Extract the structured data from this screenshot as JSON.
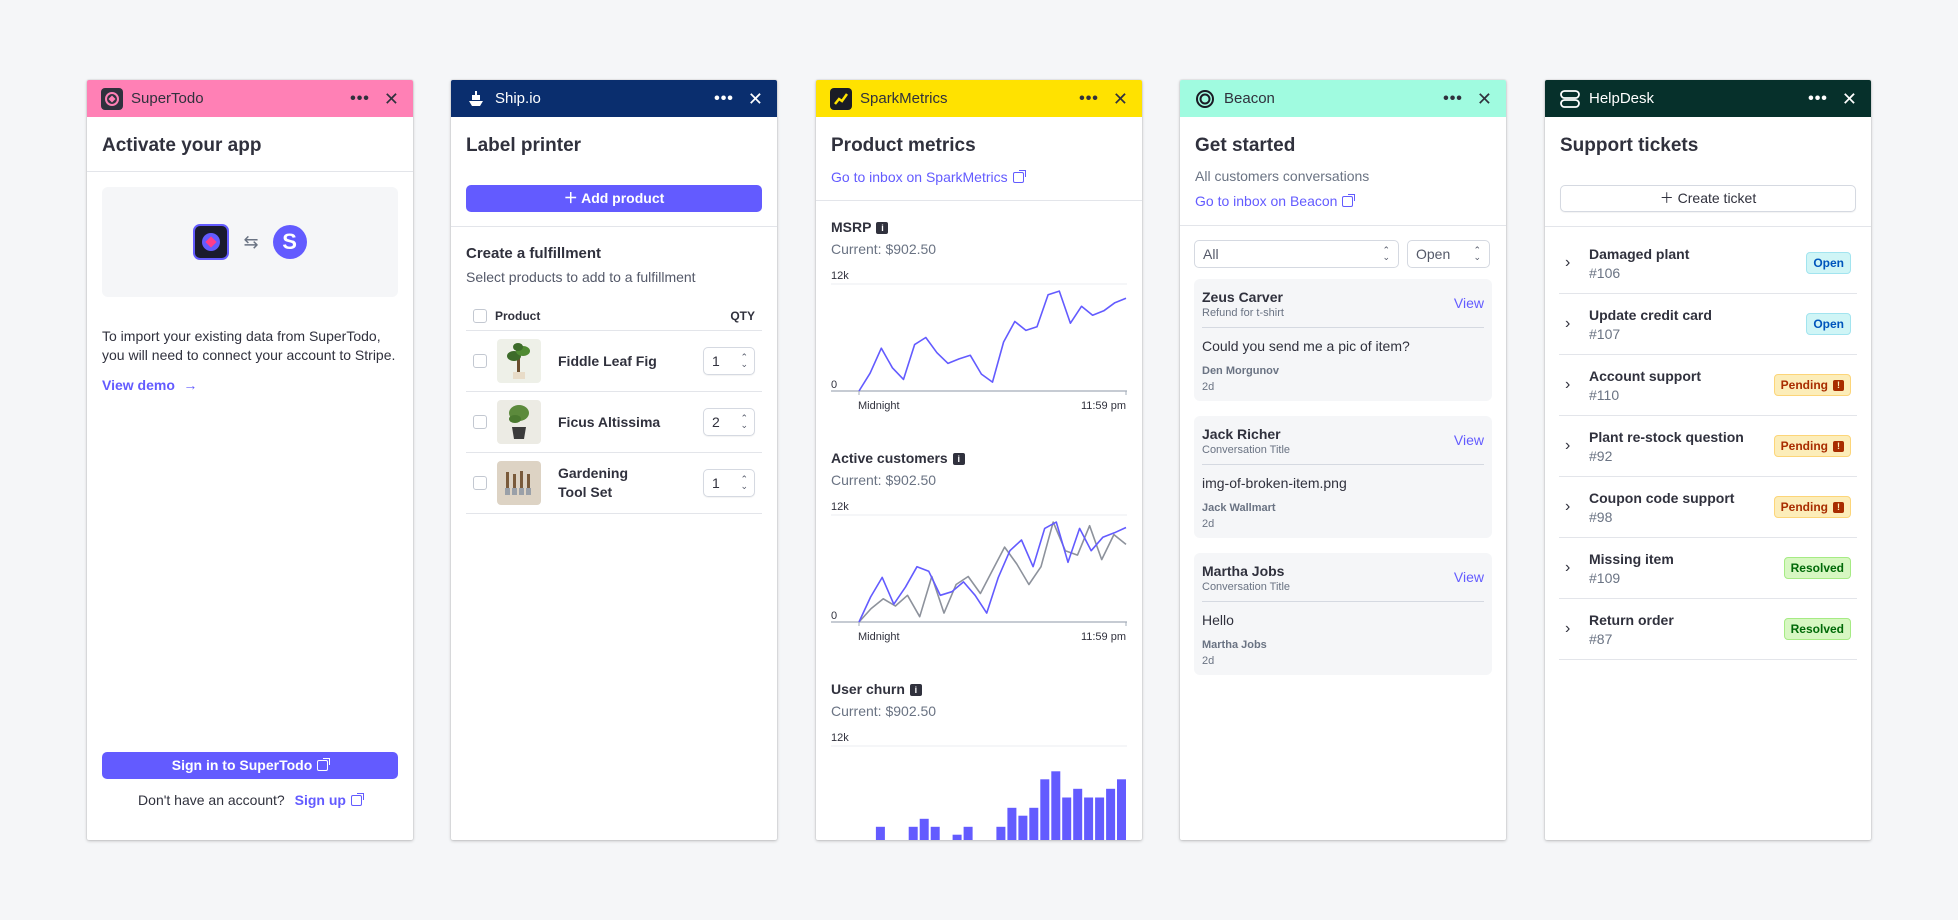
{
  "supertodo": {
    "app_name": "SuperTodo",
    "header_color": "#ff80b5",
    "title": "Activate your app",
    "description": "To import your existing data from SuperTodo, you will need to connect your account to Stripe.",
    "view_demo": "View demo",
    "sign_in": "Sign in to SuperTodo",
    "no_account": "Don't have an account?",
    "sign_up": "Sign up"
  },
  "shipio": {
    "app_name": "Ship.io",
    "header_color": "#0a2e6e",
    "title": "Label printer",
    "add_product": "Add product",
    "fulfillment_title": "Create a fulfillment",
    "fulfillment_sub": "Select products to add to a fulfillment",
    "col_product": "Product",
    "col_qty": "QTY",
    "products": [
      {
        "name": "Fiddle Leaf Fig",
        "qty": "1"
      },
      {
        "name": "Ficus Altissima",
        "qty": "2"
      },
      {
        "name": "Gardening Tool Set",
        "qty": "1"
      }
    ]
  },
  "sparkmetrics": {
    "app_name": "SparkMetrics",
    "header_color": "#ffe200",
    "title": "Product metrics",
    "inbox_link": "Go to inbox on SparkMetrics",
    "metrics": [
      {
        "name": "MSRP",
        "current": "Current: $902.50",
        "y_max": "12k",
        "y_min": "0",
        "x_start": "Midnight",
        "x_end": "11:59 pm"
      },
      {
        "name": "Active customers",
        "current": "Current: $902.50",
        "y_max": "12k",
        "y_min": "0",
        "x_start": "Midnight",
        "x_end": "11:59 pm"
      },
      {
        "name": "User churn",
        "current": "Current: $902.50",
        "y_max": "12k"
      }
    ]
  },
  "chart_data": [
    {
      "type": "line",
      "title": "MSRP",
      "ylim": [
        0,
        12000
      ],
      "x_range": [
        "Midnight",
        "11:59 pm"
      ],
      "series": [
        {
          "color": "#635bff",
          "values": [
            0,
            2000,
            4800,
            2600,
            1300,
            5200,
            6000,
            4300,
            3100,
            3600,
            4000,
            1900,
            1000,
            5500,
            7800,
            6800,
            7200,
            10800,
            11200,
            7600,
            9500,
            8500,
            9000,
            9900,
            10400
          ]
        }
      ]
    },
    {
      "type": "line",
      "title": "Active customers",
      "ylim": [
        0,
        12000
      ],
      "x_range": [
        "Midnight",
        "11:59 pm"
      ],
      "series": [
        {
          "color": "#635bff",
          "values": [
            0,
            2800,
            5000,
            2000,
            3900,
            6200,
            5700,
            3000,
            3400,
            4500,
            3000,
            1000,
            5000,
            8000,
            9200,
            6200,
            10500,
            11200,
            6700,
            10500,
            8000,
            9500,
            10000,
            10600
          ]
        },
        {
          "color": "#8d929c",
          "values": [
            0,
            1500,
            2600,
            1800,
            3000,
            600,
            5100,
            1000,
            4200,
            5100,
            3200,
            5800,
            8400,
            6500,
            4200,
            6200,
            11200,
            8000,
            7500,
            10800,
            7000,
            9800,
            8700
          ]
        }
      ]
    },
    {
      "type": "bar",
      "title": "User churn",
      "ylim": [
        0,
        12000
      ],
      "values": [
        0,
        0,
        0,
        0,
        1800,
        0,
        0,
        1800,
        2800,
        1800,
        0,
        800,
        1800,
        0,
        0,
        1800,
        4200,
        3200,
        4200,
        7800,
        8800,
        5500,
        6600,
        5500,
        5500,
        6600,
        7800
      ]
    }
  ],
  "beacon": {
    "app_name": "Beacon",
    "header_color": "#a0fbe0",
    "title": "Get started",
    "subtitle": "All customers conversations",
    "inbox_link": "Go to inbox on Beacon",
    "filter_all": "All",
    "filter_open": "Open",
    "view_label": "View",
    "conversations": [
      {
        "name": "Zeus Carver",
        "subject": "Refund for t-shirt",
        "message": "Could you send me a pic of item?",
        "author": "Den Morgunov",
        "time": "2d"
      },
      {
        "name": "Jack Richer",
        "subject": "Conversation Title",
        "message": "img-of-broken-item.png",
        "author": "Jack Wallmart",
        "time": "2d"
      },
      {
        "name": "Martha Jobs",
        "subject": "Conversation Title",
        "message": "Hello",
        "author": "Martha Jobs",
        "time": "2d"
      }
    ]
  },
  "helpdesk": {
    "app_name": "HelpDesk",
    "header_color": "#06302b",
    "title": "Support tickets",
    "create_ticket": "Create ticket",
    "tickets": [
      {
        "title": "Damaged plant",
        "number": "#106",
        "status": "Open",
        "kind": "open"
      },
      {
        "title": "Update credit card",
        "number": "#107",
        "status": "Open",
        "kind": "open"
      },
      {
        "title": "Account support",
        "number": "#110",
        "status": "Pending",
        "kind": "pending"
      },
      {
        "title": "Plant re-stock question",
        "number": "#92",
        "status": "Pending",
        "kind": "pending"
      },
      {
        "title": "Coupon code support",
        "number": "#98",
        "status": "Pending",
        "kind": "pending"
      },
      {
        "title": "Missing item",
        "number": "#109",
        "status": "Resolved",
        "kind": "resolved"
      },
      {
        "title": "Return order",
        "number": "#87",
        "status": "Resolved",
        "kind": "resolved"
      }
    ]
  }
}
